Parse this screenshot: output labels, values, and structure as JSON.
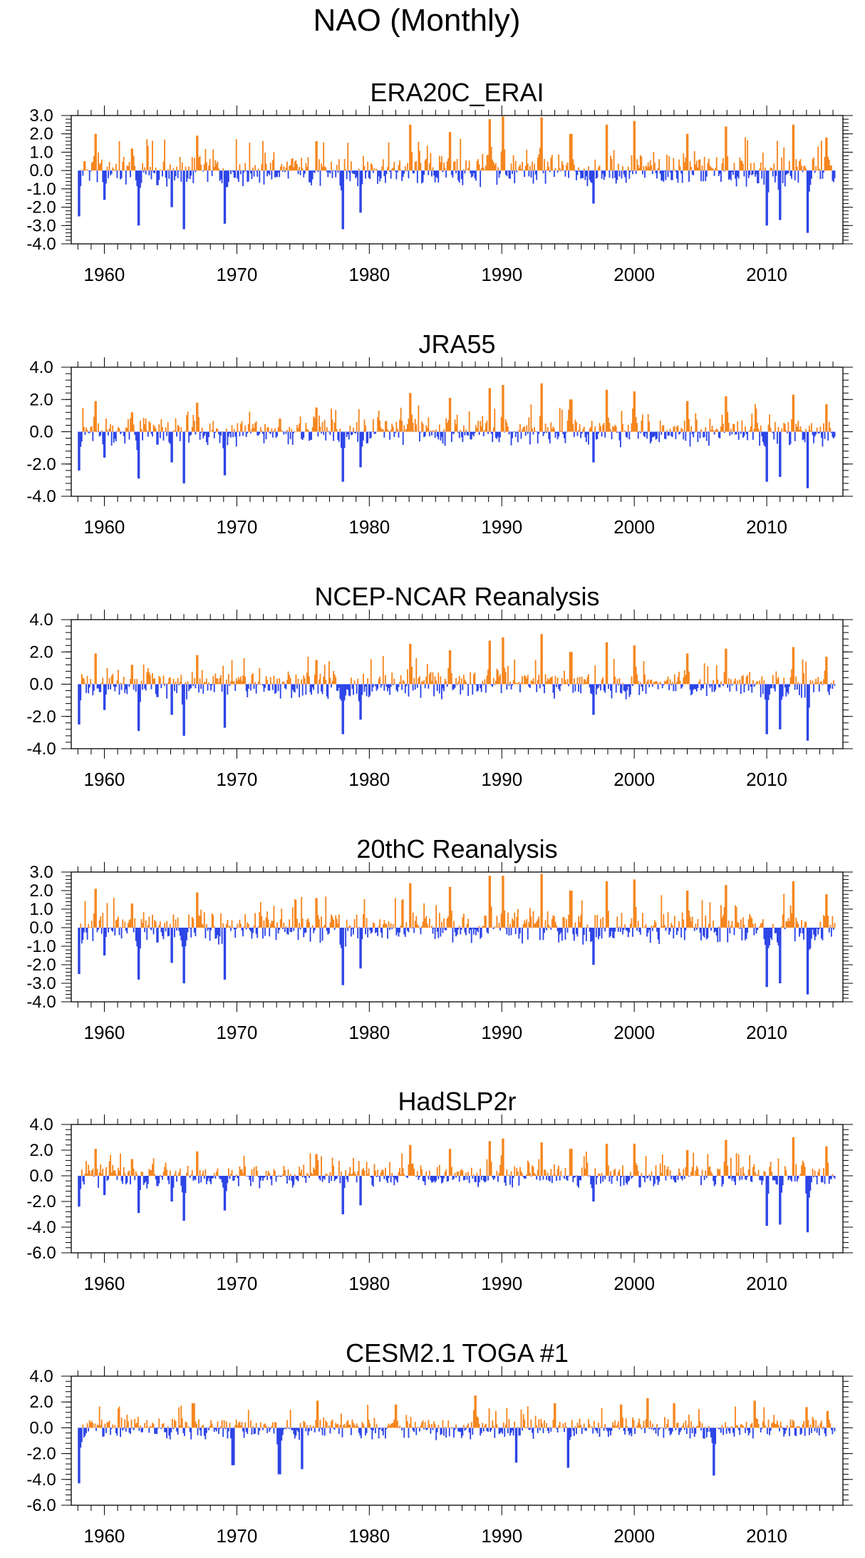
{
  "figure": {
    "title": "NAO (Monthly)"
  },
  "colors": {
    "positive": "#f5861f",
    "negative": "#2d45e6",
    "axis": "#000000"
  },
  "chart_data": [
    {
      "type": "bar",
      "title": "ERA20C_ERAI",
      "xlabel": "",
      "ylabel": "",
      "x_range": [
        1958,
        2015
      ],
      "xlim": [
        1957.5,
        2015.75
      ],
      "xticks": [
        "1960",
        "1970",
        "1980",
        "1990",
        "2000",
        "2010"
      ],
      "ylim": [
        -4.0,
        3.0
      ],
      "yticks": [
        "3.0",
        "2.0",
        "1.0",
        "0.0",
        "-1.0",
        "-2.0",
        "-3.0",
        "-4.0"
      ],
      "ytick_values": [
        3,
        2,
        1,
        0,
        -1,
        -2,
        -3,
        -4
      ],
      "minor_step": 0.2,
      "key_points": [
        [
          1958.1,
          -2.5
        ],
        [
          1959.3,
          2.0
        ],
        [
          1960.0,
          -1.6
        ],
        [
          1962.1,
          1.2
        ],
        [
          1962.6,
          -3.0
        ],
        [
          1964.0,
          -0.8
        ],
        [
          1965.1,
          -2.0
        ],
        [
          1966.0,
          -3.2
        ],
        [
          1967.0,
          1.9
        ],
        [
          1969.1,
          -2.9
        ],
        [
          1976.0,
          1.6
        ],
        [
          1978.0,
          -3.2
        ],
        [
          1979.3,
          -2.3
        ],
        [
          1983.1,
          2.5
        ],
        [
          1986.1,
          2.1
        ],
        [
          1989.1,
          2.8
        ],
        [
          1990.1,
          3.0
        ],
        [
          1993.0,
          2.9
        ],
        [
          1995.2,
          2.0
        ],
        [
          1996.9,
          -1.8
        ],
        [
          1997.9,
          2.5
        ],
        [
          2000.0,
          2.7
        ],
        [
          2004.0,
          2.0
        ],
        [
          2006.9,
          2.4
        ],
        [
          2010.0,
          -3.0
        ],
        [
          2011.0,
          -2.7
        ],
        [
          2012.0,
          2.5
        ],
        [
          2013.1,
          -3.4
        ],
        [
          2014.5,
          1.8
        ]
      ]
    },
    {
      "type": "bar",
      "title": "JRA55",
      "xlabel": "",
      "ylabel": "",
      "x_range": [
        1958,
        2015
      ],
      "xlim": [
        1957.5,
        2015.75
      ],
      "xticks": [
        "1960",
        "1970",
        "1980",
        "1990",
        "2000",
        "2010"
      ],
      "ylim": [
        -4.0,
        4.0
      ],
      "yticks": [
        "4.0",
        "2.0",
        "0.0",
        "-2.0",
        "-4.0"
      ],
      "ytick_values": [
        4,
        2,
        0,
        -2,
        -4
      ],
      "minor_step": 0.4,
      "key_points": [
        [
          1958.1,
          -2.4
        ],
        [
          1959.3,
          1.9
        ],
        [
          1960.0,
          -1.6
        ],
        [
          1962.1,
          1.2
        ],
        [
          1962.6,
          -2.9
        ],
        [
          1964.0,
          -0.8
        ],
        [
          1965.1,
          -1.9
        ],
        [
          1966.0,
          -3.2
        ],
        [
          1967.0,
          1.8
        ],
        [
          1969.1,
          -2.7
        ],
        [
          1976.0,
          1.5
        ],
        [
          1978.0,
          -3.1
        ],
        [
          1979.3,
          -2.2
        ],
        [
          1983.1,
          2.4
        ],
        [
          1986.1,
          2.1
        ],
        [
          1989.1,
          2.7
        ],
        [
          1990.1,
          2.9
        ],
        [
          1993.0,
          3.0
        ],
        [
          1995.2,
          2.0
        ],
        [
          1996.9,
          -1.9
        ],
        [
          1997.9,
          2.6
        ],
        [
          2000.0,
          2.5
        ],
        [
          2004.0,
          1.9
        ],
        [
          2006.9,
          2.2
        ],
        [
          2010.0,
          -3.1
        ],
        [
          2011.0,
          -2.8
        ],
        [
          2012.0,
          2.3
        ],
        [
          2013.1,
          -3.5
        ],
        [
          2014.5,
          1.7
        ]
      ]
    },
    {
      "type": "bar",
      "title": "NCEP-NCAR Reanalysis",
      "xlabel": "",
      "ylabel": "",
      "x_range": [
        1958,
        2015
      ],
      "xlim": [
        1957.5,
        2015.75
      ],
      "xticks": [
        "1960",
        "1970",
        "1980",
        "1990",
        "2000",
        "2010"
      ],
      "ylim": [
        -4.0,
        4.0
      ],
      "yticks": [
        "4.0",
        "2.0",
        "0.0",
        "-2.0",
        "-4.0"
      ],
      "ytick_values": [
        4,
        2,
        0,
        -2,
        -4
      ],
      "minor_step": 0.4,
      "key_points": [
        [
          1958.1,
          -2.5
        ],
        [
          1959.3,
          1.9
        ],
        [
          1960.0,
          -1.6
        ],
        [
          1962.1,
          1.2
        ],
        [
          1962.6,
          -2.9
        ],
        [
          1964.0,
          -0.8
        ],
        [
          1965.1,
          -1.9
        ],
        [
          1966.0,
          -3.2
        ],
        [
          1967.0,
          1.8
        ],
        [
          1969.1,
          -2.7
        ],
        [
          1976.0,
          1.5
        ],
        [
          1978.0,
          -3.1
        ],
        [
          1979.3,
          -2.2
        ],
        [
          1983.1,
          2.5
        ],
        [
          1986.1,
          2.1
        ],
        [
          1989.1,
          2.7
        ],
        [
          1990.1,
          2.9
        ],
        [
          1993.0,
          3.1
        ],
        [
          1995.2,
          2.0
        ],
        [
          1996.9,
          -1.9
        ],
        [
          1997.9,
          2.6
        ],
        [
          2000.0,
          2.4
        ],
        [
          2004.0,
          1.9
        ],
        [
          2006.9,
          2.2
        ],
        [
          2010.0,
          -3.1
        ],
        [
          2011.0,
          -2.8
        ],
        [
          2012.0,
          2.3
        ],
        [
          2013.1,
          -3.5
        ],
        [
          2014.5,
          1.7
        ]
      ]
    },
    {
      "type": "bar",
      "title": "20thC Reanalysis",
      "xlabel": "",
      "ylabel": "",
      "x_range": [
        1958,
        2015
      ],
      "xlim": [
        1957.5,
        2015.75
      ],
      "xticks": [
        "1960",
        "1970",
        "1980",
        "1990",
        "2000",
        "2010"
      ],
      "ylim": [
        -4.0,
        3.0
      ],
      "yticks": [
        "3.0",
        "2.0",
        "1.0",
        "0.0",
        "-1.0",
        "-2.0",
        "-3.0",
        "-4.0"
      ],
      "ytick_values": [
        3,
        2,
        1,
        0,
        -1,
        -2,
        -3,
        -4
      ],
      "minor_step": 0.2,
      "key_points": [
        [
          1958.1,
          -2.5
        ],
        [
          1959.3,
          2.1
        ],
        [
          1960.0,
          -1.5
        ],
        [
          1962.1,
          1.3
        ],
        [
          1962.6,
          -2.8
        ],
        [
          1964.0,
          -0.8
        ],
        [
          1965.1,
          -1.9
        ],
        [
          1966.0,
          -3.0
        ],
        [
          1967.0,
          1.9
        ],
        [
          1969.1,
          -2.8
        ],
        [
          1976.0,
          1.6
        ],
        [
          1978.0,
          -3.1
        ],
        [
          1979.3,
          -2.2
        ],
        [
          1983.1,
          2.4
        ],
        [
          1986.1,
          2.2
        ],
        [
          1989.1,
          2.8
        ],
        [
          1990.1,
          2.8
        ],
        [
          1993.0,
          2.9
        ],
        [
          1995.2,
          2.0
        ],
        [
          1996.9,
          -2.0
        ],
        [
          1997.9,
          2.5
        ],
        [
          2000.0,
          2.6
        ],
        [
          2004.0,
          2.0
        ],
        [
          2006.9,
          2.3
        ],
        [
          2010.0,
          -3.2
        ],
        [
          2011.0,
          -3.0
        ],
        [
          2012.0,
          2.5
        ],
        [
          2013.1,
          -3.6
        ],
        [
          2014.5,
          1.8
        ]
      ]
    },
    {
      "type": "bar",
      "title": "HadSLP2r",
      "xlabel": "",
      "ylabel": "",
      "x_range": [
        1958,
        2015
      ],
      "xlim": [
        1957.5,
        2015.75
      ],
      "xticks": [
        "1960",
        "1970",
        "1980",
        "1990",
        "2000",
        "2010"
      ],
      "ylim": [
        -6.0,
        4.0
      ],
      "yticks": [
        "4.0",
        "2.0",
        "0.0",
        "-2.0",
        "-4.0",
        "-6.0"
      ],
      "ytick_values": [
        4,
        2,
        0,
        -2,
        -4,
        -6
      ],
      "minor_step": 0.4,
      "key_points": [
        [
          1958.1,
          -2.4
        ],
        [
          1959.3,
          2.1
        ],
        [
          1960.0,
          -1.5
        ],
        [
          1962.1,
          1.3
        ],
        [
          1962.6,
          -2.9
        ],
        [
          1964.0,
          -0.8
        ],
        [
          1965.1,
          -2.0
        ],
        [
          1966.0,
          -3.5
        ],
        [
          1967.0,
          1.9
        ],
        [
          1969.1,
          -2.7
        ],
        [
          1976.0,
          1.7
        ],
        [
          1978.0,
          -3.0
        ],
        [
          1979.3,
          -2.3
        ],
        [
          1983.1,
          2.4
        ],
        [
          1986.1,
          2.1
        ],
        [
          1989.1,
          2.7
        ],
        [
          1990.1,
          2.9
        ],
        [
          1993.0,
          2.6
        ],
        [
          1995.2,
          2.1
        ],
        [
          1996.9,
          -2.0
        ],
        [
          1997.9,
          2.5
        ],
        [
          2000.0,
          2.5
        ],
        [
          2004.0,
          2.0
        ],
        [
          2006.9,
          2.8
        ],
        [
          2010.0,
          -3.9
        ],
        [
          2011.0,
          -3.8
        ],
        [
          2012.0,
          3.0
        ],
        [
          2013.1,
          -4.4
        ],
        [
          2014.5,
          2.3
        ]
      ]
    },
    {
      "type": "bar",
      "title": "CESM2.1 TOGA #1",
      "xlabel": "",
      "ylabel": "",
      "x_range": [
        1958,
        2015
      ],
      "xlim": [
        1957.5,
        2015.75
      ],
      "xticks": [
        "1960",
        "1970",
        "1980",
        "1990",
        "2000",
        "2010"
      ],
      "ylim": [
        -6.0,
        4.0
      ],
      "yticks": [
        "4.0",
        "2.0",
        "0.0",
        "-2.0",
        "-4.0",
        "-6.0"
      ],
      "ytick_values": [
        4,
        2,
        0,
        -2,
        -4,
        -6
      ],
      "minor_step": 0.4,
      "key_points": [
        [
          1958.1,
          -4.3
        ],
        [
          1966.7,
          1.9
        ],
        [
          1969.7,
          -2.9
        ],
        [
          1973.2,
          -3.6
        ],
        [
          1974.9,
          -3.2
        ],
        [
          1976.1,
          2.1
        ],
        [
          1982.0,
          1.8
        ],
        [
          1988.0,
          2.5
        ],
        [
          1991.1,
          -2.7
        ],
        [
          1994.0,
          1.9
        ],
        [
          1995.0,
          -3.1
        ],
        [
          1999.0,
          1.8
        ],
        [
          2001.0,
          2.3
        ],
        [
          2003.0,
          1.9
        ],
        [
          2006.0,
          -3.7
        ],
        [
          2009.1,
          2.1
        ],
        [
          2013.0,
          1.6
        ],
        [
          2014.6,
          1.3
        ]
      ]
    }
  ]
}
